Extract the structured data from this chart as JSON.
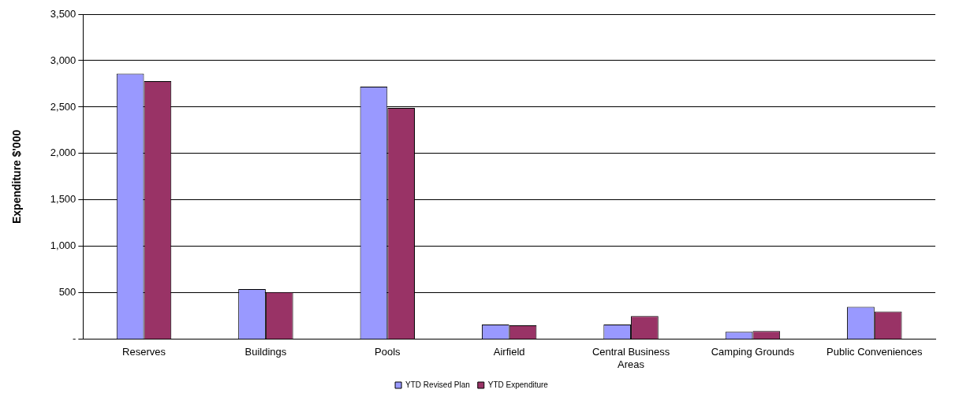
{
  "chart_data": {
    "type": "bar",
    "ylabel": "Expenditure $'000",
    "categories": [
      "Reserves",
      "Buildings",
      "Pools",
      "Airfield",
      "Central Business Areas",
      "Camping Grounds",
      "Public Conveniences"
    ],
    "series": [
      {
        "name": "YTD Revised Plan",
        "color": "#9999ff",
        "values": [
          2860,
          540,
          2720,
          160,
          160,
          80,
          350
        ]
      },
      {
        "name": "YTD Expenditure",
        "color": "#993366",
        "values": [
          2780,
          510,
          2490,
          150,
          250,
          90,
          300
        ]
      }
    ],
    "ylim": [
      0,
      3500
    ],
    "yticks": [
      {
        "value": 0,
        "label": "-"
      },
      {
        "value": 500,
        "label": "500"
      },
      {
        "value": 1000,
        "label": "1,000"
      },
      {
        "value": 1500,
        "label": "1,500"
      },
      {
        "value": 2000,
        "label": "2,000"
      },
      {
        "value": 2500,
        "label": "2,500"
      },
      {
        "value": 3000,
        "label": "3,000"
      },
      {
        "value": 3500,
        "label": "3,500"
      }
    ],
    "grid": "y",
    "legend": "bottom"
  }
}
